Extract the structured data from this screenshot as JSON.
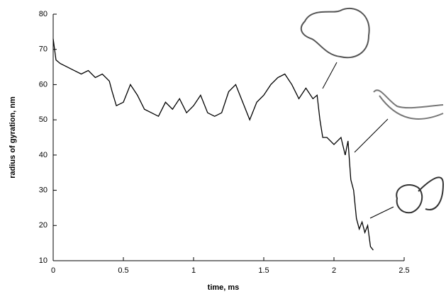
{
  "chart_data": {
    "type": "line",
    "xlabel": "time, ms",
    "ylabel": "radius of gyration, nm",
    "color": "#000000",
    "x": [
      0,
      0.02,
      0.05,
      0.1,
      0.15,
      0.2,
      0.25,
      0.3,
      0.35,
      0.4,
      0.42,
      0.45,
      0.5,
      0.55,
      0.6,
      0.65,
      0.7,
      0.75,
      0.8,
      0.85,
      0.9,
      0.95,
      1.0,
      1.05,
      1.1,
      1.15,
      1.2,
      1.25,
      1.3,
      1.35,
      1.4,
      1.45,
      1.5,
      1.55,
      1.6,
      1.65,
      1.7,
      1.75,
      1.8,
      1.85,
      1.88,
      1.9,
      1.92,
      1.95,
      2.0,
      2.05,
      2.08,
      2.1,
      2.12,
      2.14,
      2.16,
      2.18,
      2.2,
      2.22,
      2.24,
      2.26,
      2.28
    ],
    "values": [
      73,
      67,
      66,
      65,
      64,
      63,
      64,
      62,
      63,
      61,
      58,
      54,
      55,
      60,
      57,
      53,
      52,
      51,
      55,
      53,
      56,
      52,
      54,
      57,
      52,
      51,
      52,
      58,
      60,
      55,
      50,
      55,
      57,
      60,
      62,
      63,
      60,
      56,
      59,
      56,
      57,
      50,
      45,
      45,
      43,
      45,
      40,
      44,
      33,
      30,
      22,
      19,
      21,
      18,
      20,
      14,
      13
    ],
    "xlim": [
      0,
      2.5
    ],
    "xticks": [
      0,
      0.5,
      1,
      1.5,
      2,
      2.5
    ],
    "ylim": [
      10,
      80
    ],
    "yticks": [
      10,
      20,
      30,
      40,
      50,
      60,
      70,
      80
    ]
  }
}
